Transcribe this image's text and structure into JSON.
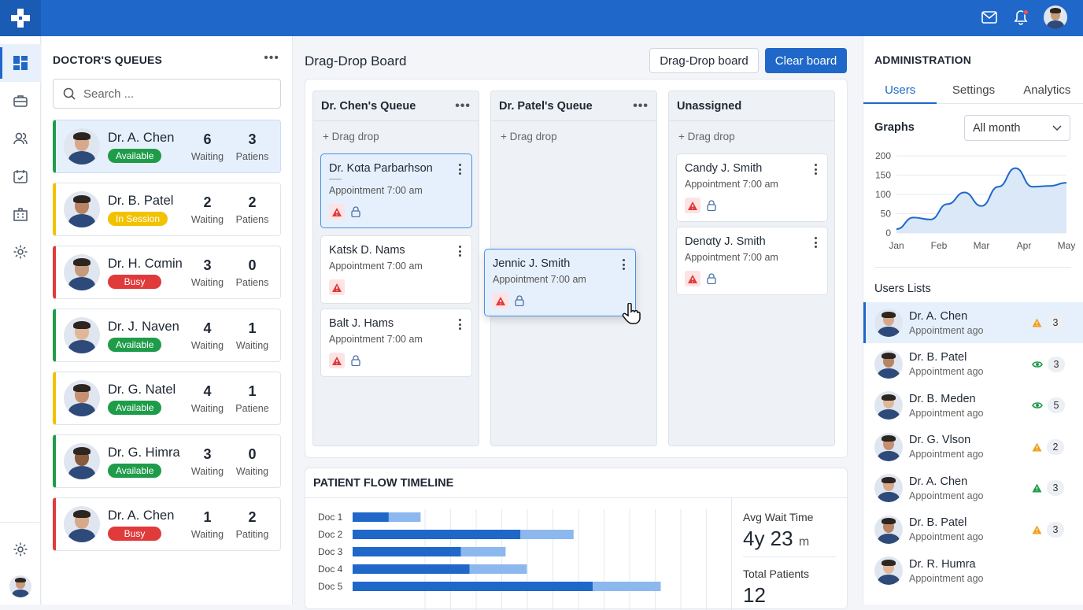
{
  "colors": {
    "accent": "#1f68c9",
    "green": "#1e9c4a",
    "yellow": "#f2c200",
    "red": "#e03a3a",
    "warn_orange": "#f0a020"
  },
  "topbar": {
    "icons": [
      "mail-icon",
      "bell-icon",
      "user-avatar"
    ]
  },
  "sidenav": {
    "items": [
      "dashboard-icon",
      "briefcase-icon",
      "users-icon",
      "calendar-icon",
      "building-icon",
      "settings-icon"
    ]
  },
  "queues": {
    "title": "DOCTOR'S QUEUES",
    "search_placeholder": "Search ...",
    "doctors": [
      {
        "name": "Dr. A. Chen",
        "status": "Available",
        "status_color": "#1e9c4a",
        "accent": "#1e9c4a",
        "n1": "6",
        "l1": "Waiting",
        "n2": "3",
        "l2": "Patiens",
        "selected": true
      },
      {
        "name": "Dr. B. Patel",
        "status": "In Session",
        "status_color": "#f2c200",
        "accent": "#f2c200",
        "n1": "2",
        "l1": "Waiting",
        "n2": "2",
        "l2": "Patiens"
      },
      {
        "name": "Dr. H. Cαmin",
        "status": "Busy",
        "status_color": "#e03a3a",
        "accent": "#e03a3a",
        "n1": "3",
        "l1": "Waiting",
        "n2": "0",
        "l2": "Patiens"
      },
      {
        "name": "Dr. J. Naven",
        "status": "Available",
        "status_color": "#1e9c4a",
        "accent": "#1e9c4a",
        "n1": "4",
        "l1": "Waiting",
        "n2": "1",
        "l2": "Waiting"
      },
      {
        "name": "Dr. G. Natel",
        "status": "Available",
        "status_color": "#1e9c4a",
        "accent": "#f2c200",
        "n1": "4",
        "l1": "Waiting",
        "n2": "1",
        "l2": "Patiene"
      },
      {
        "name": "Dr. G. Himra",
        "status": "Available",
        "status_color": "#1e9c4a",
        "accent": "#1e9c4a",
        "n1": "3",
        "l1": "Waiting",
        "n2": "0",
        "l2": "Waiting"
      },
      {
        "name": "Dr. A. Chen",
        "status": "Busy",
        "status_color": "#e03a3a",
        "accent": "#e03a3a",
        "n1": "1",
        "l1": "Waiting",
        "n2": "2",
        "l2": "Patiting"
      }
    ]
  },
  "board": {
    "title": "Drag-Drop Board",
    "btn_secondary": "Drag-Drop board",
    "btn_primary": "Clear board",
    "drag_label": "+ Drag drop",
    "columns": [
      {
        "title": "Dr. Chen's Queue",
        "cards": [
          {
            "name": "Dr. Kαta Parbarhson",
            "appt": "Appointment 7:00 am"
          },
          {
            "name": "Katsk D. Nams",
            "appt": "Appointment 7:00 am"
          },
          {
            "name": "Balt J. Hams",
            "appt": "Appointment 7:00 am"
          }
        ]
      },
      {
        "title": "Dr. Patel's Queue",
        "cards": []
      },
      {
        "title": "Unassigned",
        "cards": [
          {
            "name": "Candy J. Smith",
            "appt": "Appointment 7:00 am"
          },
          {
            "name": "Denαty J. Smith",
            "appt": "Appointment 7:00 am"
          }
        ]
      }
    ],
    "dragging_card": {
      "name": "Jennic J. Smith",
      "appt": "Appointment 7:00 am"
    }
  },
  "timeline": {
    "title": "PATIENT FLOW TIMELINE",
    "rows": [
      {
        "label": "Doc 1",
        "primary": 0.17,
        "secondary": 0.15
      },
      {
        "label": "Doc 2",
        "primary": 0.79,
        "secondary": 0.25
      },
      {
        "label": "Doc 3",
        "primary": 0.51,
        "secondary": 0.21
      },
      {
        "label": "Doc 4",
        "primary": 0.55,
        "secondary": 0.27
      },
      {
        "label": "Doc 5",
        "primary": 1.13,
        "secondary": 0.32
      }
    ],
    "avg_label": "Avg Wait Time",
    "avg_value": "4y 23",
    "avg_unit": "m",
    "total_label": "Total Patients",
    "total_value": "12"
  },
  "admin": {
    "title": "ADMINISTRATION",
    "tabs": [
      "Users",
      "Settings",
      "Analytics"
    ],
    "graphs_label": "Graphs",
    "range_select": "All month",
    "users_title": "Users Lists",
    "users": [
      {
        "name": "Dr. A. Chen",
        "sub": "Appointment ago",
        "icon": "warning-icon",
        "icon_color": "#f0a020",
        "count": "3",
        "selected": true
      },
      {
        "name": "Dr. B. Patel",
        "sub": "Appointment ago",
        "icon": "eye-icon",
        "icon_color": "#1e9c4a",
        "count": "3"
      },
      {
        "name": "Dr. B. Meden",
        "sub": "Appointment ago",
        "icon": "eye-icon",
        "icon_color": "#1e9c4a",
        "count": "5"
      },
      {
        "name": "Dr. G. Vlson",
        "sub": "Appointment ago",
        "icon": "warning-icon",
        "icon_color": "#f0a020",
        "count": "2"
      },
      {
        "name": "Dr. A. Chen",
        "sub": "Appointment ago",
        "icon": "warning-icon",
        "icon_color": "#1e9c4a",
        "count": "3"
      },
      {
        "name": "Dr. B. Patel",
        "sub": "Appointment ago",
        "icon": "warning-icon",
        "icon_color": "#f0a020",
        "count": "3"
      },
      {
        "name": "Dr. R. Humra",
        "sub": "Appointment ago",
        "icon": "",
        "icon_color": "",
        "count": ""
      }
    ]
  },
  "chart_data": {
    "type": "area",
    "categories": [
      "Jan",
      "Feb",
      "Mar",
      "Apr",
      "May"
    ],
    "x": [
      0,
      0.4,
      0.8,
      1.2,
      1.6,
      2.0,
      2.4,
      2.8,
      3.2,
      3.6,
      4.0
    ],
    "values": [
      10,
      40,
      35,
      75,
      105,
      70,
      120,
      168,
      120,
      122,
      130
    ],
    "ylim": [
      0,
      200
    ],
    "yticks": [
      0,
      50,
      100,
      150,
      200
    ],
    "xlabel": "",
    "ylabel": "",
    "grid": true
  }
}
